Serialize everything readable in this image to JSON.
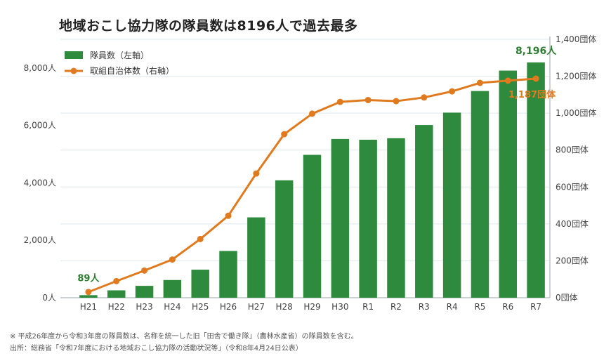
{
  "title": "地域おこし協力隊の隊員数は8196人で過去最多",
  "notes": {
    "note1": "※ 平成26年度から令和3年度の隊員数は、名称を統一した旧「田舎で働き隊」（農林水産省）の隊員数を含む。",
    "source": "出所：総務省「令和7年度における地域おこし協力隊の活動状況等」（令和8年4月24日公表）"
  },
  "colors": {
    "bar": "#2e8b3e",
    "line": "#e07a1f",
    "barLabel": "#2e7d32",
    "lineLabel": "#e07a1f"
  },
  "chart_data": {
    "type": "bar",
    "categories": [
      "H21",
      "H22",
      "H23",
      "H24",
      "H25",
      "H26",
      "H27",
      "H28",
      "H29",
      "H30",
      "R1",
      "R2",
      "R3",
      "R4",
      "R5",
      "R6",
      "R7"
    ],
    "series": [
      {
        "name": "隊員数（左軸）",
        "axis": "left",
        "type": "bar",
        "values": [
          89,
          257,
          413,
          617,
          978,
          1629,
          2799,
          4090,
          4976,
          5530,
          5503,
          5556,
          6015,
          6447,
          7200,
          7910,
          8196
        ]
      },
      {
        "name": "取組自治体数（右軸）",
        "axis": "right",
        "type": "line",
        "values": [
          31,
          90,
          147,
          207,
          318,
          444,
          673,
          886,
          997,
          1061,
          1071,
          1065,
          1085,
          1118,
          1164,
          1176,
          1187
        ]
      }
    ],
    "left_axis": {
      "ylim": [
        0,
        9000
      ],
      "ticks": [
        "0人",
        "2,000人",
        "4,000人",
        "6,000人",
        "8,000人"
      ],
      "tick_values": [
        0,
        2000,
        4000,
        6000,
        8000
      ]
    },
    "right_axis": {
      "ylim": [
        0,
        1400
      ],
      "ticks": [
        "0団体",
        "200団体",
        "400団体",
        "600団体",
        "800団体",
        "1,000団体",
        "1,200団体",
        "1,400団体"
      ],
      "tick_values": [
        0,
        200,
        400,
        600,
        800,
        1000,
        1200,
        1400
      ]
    },
    "annotations": {
      "first_bar": "89人",
      "last_bar": "8,196人",
      "last_line": "1,187団体"
    },
    "legend": {
      "position": "top-left"
    },
    "grid": true
  }
}
